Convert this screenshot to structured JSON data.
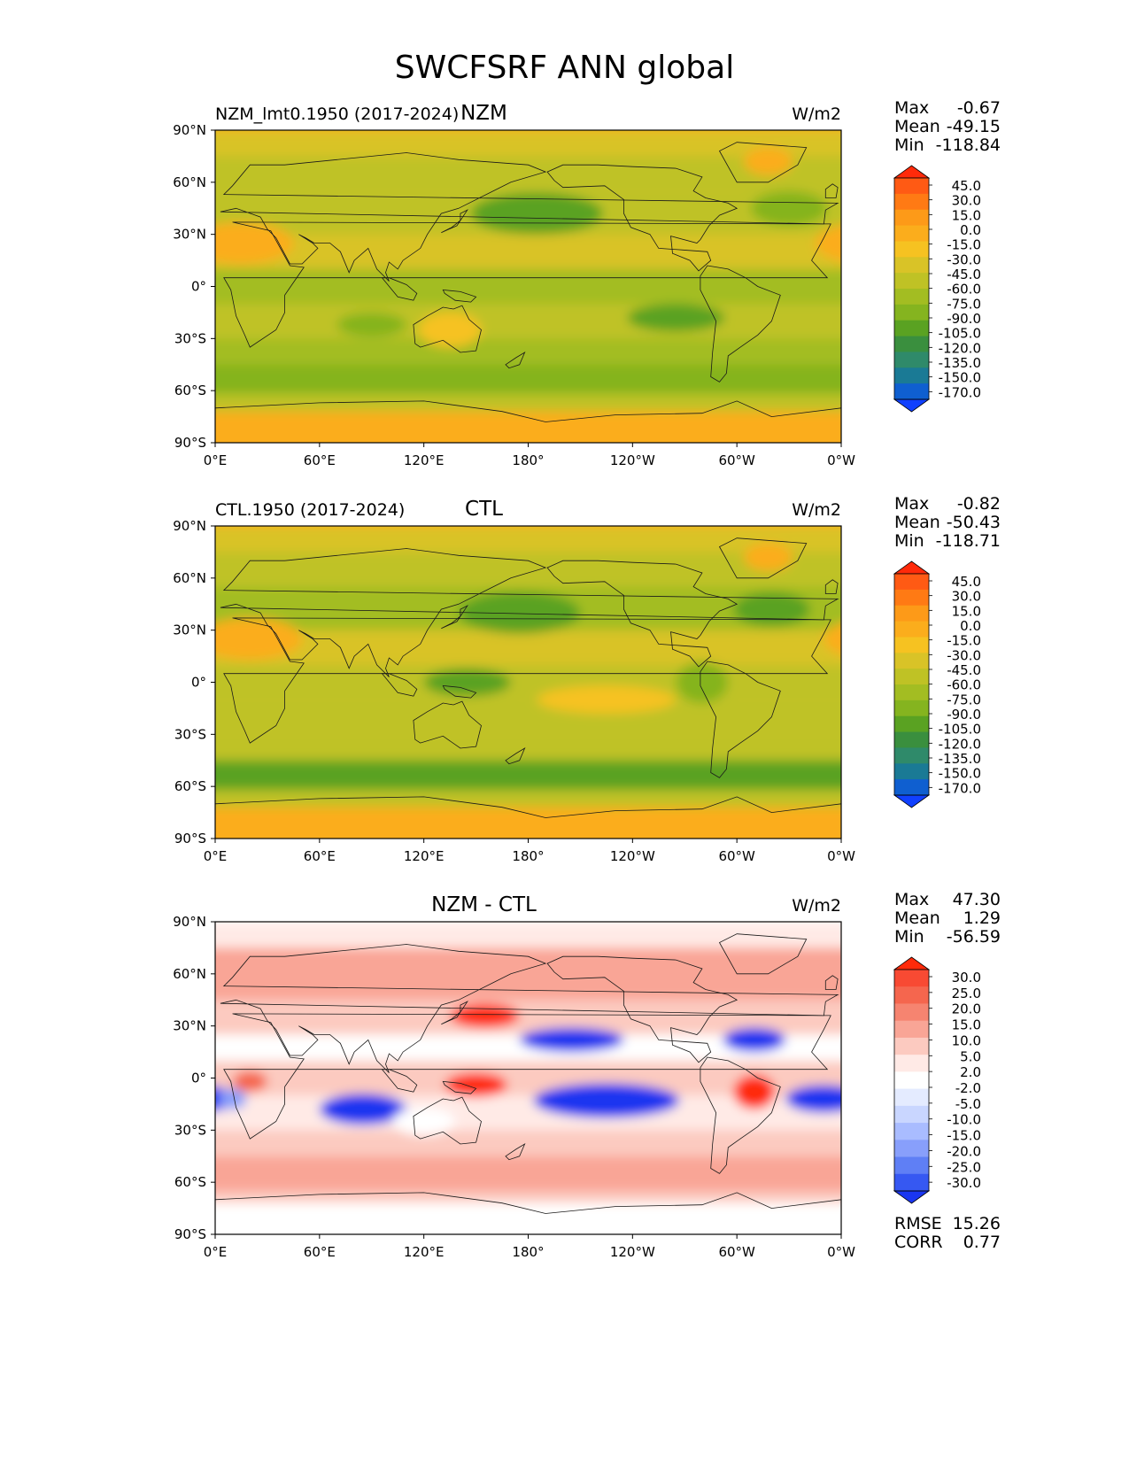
{
  "figure_title": "SWCFSRF ANN global",
  "chart_data": [
    {
      "type": "heatmap",
      "panel": "top",
      "title": "NZM",
      "left_label": "NZM_lmt0.1950 (2017-2024)",
      "units": "W/m2",
      "stats": [
        {
          "label": "Max",
          "value": "-0.67"
        },
        {
          "label": "Mean",
          "value": "-49.15"
        },
        {
          "label": "Min",
          "value": "-118.84"
        }
      ],
      "colorbar_levels": [
        "45.0",
        "30.0",
        "15.0",
        "0.0",
        "-15.0",
        "-30.0",
        "-45.0",
        "-60.0",
        "-75.0",
        "-90.0",
        "-105.0",
        "-120.0",
        "-135.0",
        "-150.0",
        "-170.0"
      ],
      "colorbar_colors": [
        "#ff2a0a",
        "#ff5a14",
        "#ff7a14",
        "#fd9a18",
        "#fbad1c",
        "#f6c221",
        "#d9c327",
        "#bfc225",
        "#a3bd22",
        "#85b41f",
        "#5aa222",
        "#3a8f3e",
        "#2f8a6a",
        "#1a7a95",
        "#0f5fd0",
        "#1040ff"
      ],
      "xticks": [
        "0°E",
        "60°E",
        "120°E",
        "180°",
        "120°W",
        "60°W",
        "0°W"
      ],
      "yticks": [
        "90°N",
        "60°N",
        "30°N",
        "0°",
        "30°S",
        "60°S",
        "90°S"
      ],
      "xlim": [
        0,
        360
      ],
      "ylim": [
        -90,
        90
      ],
      "zones": [
        {
          "lat": [
            75,
            90
          ],
          "value": -35
        },
        {
          "lat": [
            55,
            75
          ],
          "value": -50
        },
        {
          "lat": [
            30,
            55
          ],
          "value": -60
        },
        {
          "lat": [
            10,
            30
          ],
          "value": -40
        },
        {
          "lat": [
            -10,
            10
          ],
          "value": -65
        },
        {
          "lat": [
            -30,
            -10
          ],
          "value": -55
        },
        {
          "lat": [
            -45,
            -30
          ],
          "value": -65
        },
        {
          "lat": [
            -62,
            -45
          ],
          "value": -85
        },
        {
          "lat": [
            -72,
            -62
          ],
          "value": -55
        },
        {
          "lat": [
            -90,
            -72
          ],
          "value": -15
        }
      ],
      "blobs": [
        {
          "lon": 185,
          "lat": 42,
          "rx": 38,
          "ry": 12,
          "value": -95
        },
        {
          "lon": 330,
          "lat": 45,
          "rx": 22,
          "ry": 10,
          "value": -90
        },
        {
          "lon": 265,
          "lat": -18,
          "rx": 28,
          "ry": 8,
          "value": -95
        },
        {
          "lon": 90,
          "lat": -22,
          "rx": 20,
          "ry": 7,
          "value": -85
        },
        {
          "lon": 15,
          "lat": 25,
          "rx": 30,
          "ry": 12,
          "value": -10
        },
        {
          "lon": 135,
          "lat": -25,
          "rx": 18,
          "ry": 10,
          "value": -20
        },
        {
          "lon": 318,
          "lat": 72,
          "rx": 14,
          "ry": 8,
          "value": -10
        }
      ]
    },
    {
      "type": "heatmap",
      "panel": "middle",
      "title": "CTL",
      "left_label": "CTL.1950 (2017-2024)",
      "units": "W/m2",
      "stats": [
        {
          "label": "Max",
          "value": "-0.82"
        },
        {
          "label": "Mean",
          "value": "-50.43"
        },
        {
          "label": "Min",
          "value": "-118.71"
        }
      ],
      "colorbar_levels": [
        "45.0",
        "30.0",
        "15.0",
        "0.0",
        "-15.0",
        "-30.0",
        "-45.0",
        "-60.0",
        "-75.0",
        "-90.0",
        "-105.0",
        "-120.0",
        "-135.0",
        "-150.0",
        "-170.0"
      ],
      "colorbar_colors": [
        "#ff2a0a",
        "#ff5a14",
        "#ff7a14",
        "#fd9a18",
        "#fbad1c",
        "#f6c221",
        "#d9c327",
        "#bfc225",
        "#a3bd22",
        "#85b41f",
        "#5aa222",
        "#3a8f3e",
        "#2f8a6a",
        "#1a7a95",
        "#0f5fd0",
        "#1040ff"
      ],
      "xticks": [
        "0°E",
        "60°E",
        "120°E",
        "180°",
        "120°W",
        "60°W",
        "0°W"
      ],
      "yticks": [
        "90°N",
        "60°N",
        "30°N",
        "0°",
        "30°S",
        "60°S",
        "90°S"
      ],
      "xlim": [
        0,
        360
      ],
      "ylim": [
        -90,
        90
      ],
      "zones": [
        {
          "lat": [
            75,
            90
          ],
          "value": -35
        },
        {
          "lat": [
            55,
            75
          ],
          "value": -55
        },
        {
          "lat": [
            30,
            55
          ],
          "value": -65
        },
        {
          "lat": [
            10,
            30
          ],
          "value": -40
        },
        {
          "lat": [
            -10,
            10
          ],
          "value": -55
        },
        {
          "lat": [
            -30,
            -10
          ],
          "value": -50
        },
        {
          "lat": [
            -45,
            -30
          ],
          "value": -60
        },
        {
          "lat": [
            -62,
            -45
          ],
          "value": -95
        },
        {
          "lat": [
            -72,
            -62
          ],
          "value": -55
        },
        {
          "lat": [
            -90,
            -72
          ],
          "value": -15
        }
      ],
      "blobs": [
        {
          "lon": 175,
          "lat": 40,
          "rx": 35,
          "ry": 12,
          "value": -105
        },
        {
          "lon": 320,
          "lat": 42,
          "rx": 22,
          "ry": 10,
          "value": -95
        },
        {
          "lon": 280,
          "lat": 0,
          "rx": 15,
          "ry": 12,
          "value": -85
        },
        {
          "lon": 145,
          "lat": 0,
          "rx": 25,
          "ry": 8,
          "value": -95
        },
        {
          "lon": 20,
          "lat": 25,
          "rx": 30,
          "ry": 12,
          "value": -10
        },
        {
          "lon": 225,
          "lat": -10,
          "rx": 40,
          "ry": 8,
          "value": -30
        },
        {
          "lon": 318,
          "lat": 72,
          "rx": 14,
          "ry": 8,
          "value": -10
        }
      ]
    },
    {
      "type": "heatmap",
      "panel": "bottom",
      "title": "NZM - CTL",
      "left_label": "",
      "units": "W/m2",
      "stats": [
        {
          "label": "Max",
          "value": "47.30"
        },
        {
          "label": "Mean",
          "value": "1.29"
        },
        {
          "label": "Min",
          "value": "-56.59"
        }
      ],
      "extra_stats": [
        {
          "label": "RMSE",
          "value": "15.26"
        },
        {
          "label": "CORR",
          "value": "0.77"
        }
      ],
      "colorbar_levels": [
        "30.0",
        "25.0",
        "20.0",
        "15.0",
        "10.0",
        "5.0",
        "2.0",
        "-2.0",
        "-5.0",
        "-10.0",
        "-15.0",
        "-20.0",
        "-25.0",
        "-30.0"
      ],
      "colorbar_colors": [
        "#ff2a0a",
        "#f84a33",
        "#f5664e",
        "#f68470",
        "#f9a596",
        "#fccac0",
        "#ffeae6",
        "#ffffff",
        "#e4ebff",
        "#c9d6ff",
        "#a9bcff",
        "#889ffb",
        "#5f7ff5",
        "#3658f2",
        "#1a36f0"
      ],
      "xticks": [
        "0°E",
        "60°E",
        "120°E",
        "180°",
        "120°W",
        "60°W",
        "0°W"
      ],
      "yticks": [
        "90°N",
        "60°N",
        "30°N",
        "0°",
        "30°S",
        "60°S",
        "90°S"
      ],
      "xlim": [
        0,
        360
      ],
      "ylim": [
        -90,
        90
      ],
      "zones": [
        {
          "lat": [
            75,
            90
          ],
          "value": 3
        },
        {
          "lat": [
            45,
            75
          ],
          "value": 12
        },
        {
          "lat": [
            25,
            45
          ],
          "value": 8
        },
        {
          "lat": [
            10,
            25
          ],
          "value": 1
        },
        {
          "lat": [
            -10,
            10
          ],
          "value": 8
        },
        {
          "lat": [
            -30,
            -10
          ],
          "value": 4
        },
        {
          "lat": [
            -45,
            -30
          ],
          "value": 8
        },
        {
          "lat": [
            -65,
            -45
          ],
          "value": 14
        },
        {
          "lat": [
            -72,
            -65
          ],
          "value": 6
        },
        {
          "lat": [
            -90,
            -72
          ],
          "value": 0
        }
      ],
      "blobs": [
        {
          "lon": 85,
          "lat": -18,
          "rx": 25,
          "ry": 9,
          "value": -35
        },
        {
          "lon": 225,
          "lat": -13,
          "rx": 42,
          "ry": 10,
          "value": -35
        },
        {
          "lon": 205,
          "lat": 22,
          "rx": 30,
          "ry": 7,
          "value": -32
        },
        {
          "lon": 310,
          "lat": 22,
          "rx": 18,
          "ry": 7,
          "value": -35
        },
        {
          "lon": 350,
          "lat": -12,
          "rx": 22,
          "ry": 8,
          "value": -35
        },
        {
          "lon": 10,
          "lat": -12,
          "rx": 8,
          "ry": 6,
          "value": -20
        },
        {
          "lon": 310,
          "lat": -8,
          "rx": 12,
          "ry": 10,
          "value": 35
        },
        {
          "lon": 150,
          "lat": -4,
          "rx": 18,
          "ry": 7,
          "value": 35
        },
        {
          "lon": 155,
          "lat": 36,
          "rx": 20,
          "ry": 7,
          "value": 32
        },
        {
          "lon": 20,
          "lat": -2,
          "rx": 10,
          "ry": 6,
          "value": 20
        },
        {
          "lon": 120,
          "lat": -25,
          "rx": 18,
          "ry": 8,
          "value": 1
        }
      ]
    }
  ]
}
